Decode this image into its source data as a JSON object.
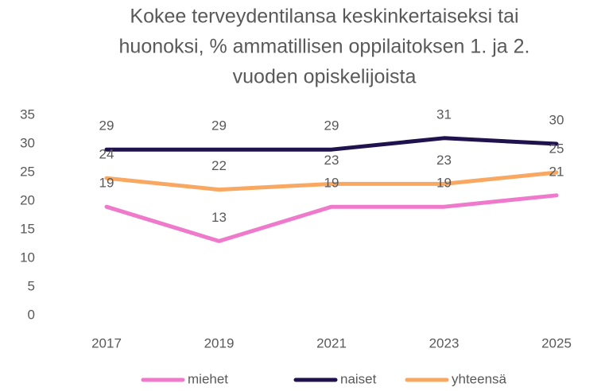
{
  "chart_data": {
    "type": "line",
    "title": [
      "Kokee terveydentilansa keskinkertaiseksi tai",
      "huonoksi, % ammatillisen oppilaitoksen 1. ja 2.",
      "vuoden opiskelijoista"
    ],
    "categories": [
      "2017",
      "2019",
      "2021",
      "2023",
      "2025"
    ],
    "series": [
      {
        "name": "miehet",
        "color": "#ef7acb",
        "values": [
          19,
          13,
          19,
          19,
          21
        ]
      },
      {
        "name": "naiset",
        "color": "#20124d",
        "values": [
          29,
          29,
          29,
          31,
          30
        ]
      },
      {
        "name": "yhteensä",
        "color": "#f9a862",
        "values": [
          24,
          22,
          23,
          23,
          25
        ]
      }
    ],
    "ylim": [
      0,
      35
    ],
    "yticks": [
      0,
      5,
      10,
      15,
      20,
      25,
      30,
      35
    ],
    "grid": false,
    "legend": "bottom"
  }
}
